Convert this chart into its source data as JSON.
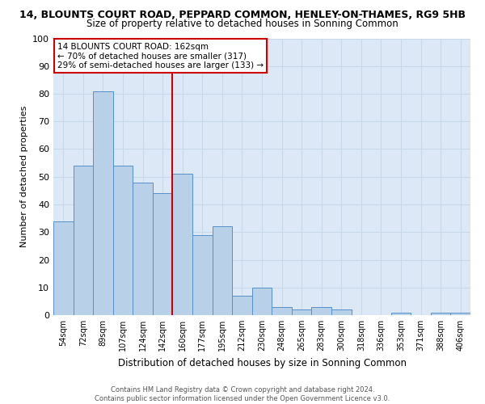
{
  "title_line1": "14, BLOUNTS COURT ROAD, PEPPARD COMMON, HENLEY-ON-THAMES, RG9 5HB",
  "title_line2": "Size of property relative to detached houses in Sonning Common",
  "xlabel": "Distribution of detached houses by size in Sonning Common",
  "ylabel": "Number of detached properties",
  "categories": [
    "54sqm",
    "72sqm",
    "89sqm",
    "107sqm",
    "124sqm",
    "142sqm",
    "160sqm",
    "177sqm",
    "195sqm",
    "212sqm",
    "230sqm",
    "248sqm",
    "265sqm",
    "283sqm",
    "300sqm",
    "318sqm",
    "336sqm",
    "353sqm",
    "371sqm",
    "388sqm",
    "406sqm"
  ],
  "values": [
    34,
    54,
    81,
    54,
    48,
    44,
    51,
    29,
    32,
    7,
    10,
    3,
    2,
    3,
    2,
    0,
    0,
    1,
    0,
    1,
    1
  ],
  "bar_color": "#b8d0e8",
  "bar_edge_color": "#5590c8",
  "vline_color": "#cc0000",
  "box_edge_color": "#cc0000",
  "ylim": [
    0,
    100
  ],
  "yticks": [
    0,
    10,
    20,
    30,
    40,
    50,
    60,
    70,
    80,
    90,
    100
  ],
  "grid_color": "#c8d8e8",
  "bg_color": "#dce8f5",
  "marker_label": "14 BLOUNTS COURT ROAD: 162sqm",
  "annotation_line2": "← 70% of detached houses are smaller (317)",
  "annotation_line3": "29% of semi-detached houses are larger (133) →",
  "footer_line1": "Contains HM Land Registry data © Crown copyright and database right 2024.",
  "footer_line2": "Contains public sector information licensed under the Open Government Licence v3.0.",
  "title1_fontsize": 9,
  "title2_fontsize": 8.5,
  "xlabel_fontsize": 8.5,
  "ylabel_fontsize": 8,
  "xtick_fontsize": 7,
  "ytick_fontsize": 8,
  "footer_fontsize": 6,
  "annot_fontsize": 7.5
}
